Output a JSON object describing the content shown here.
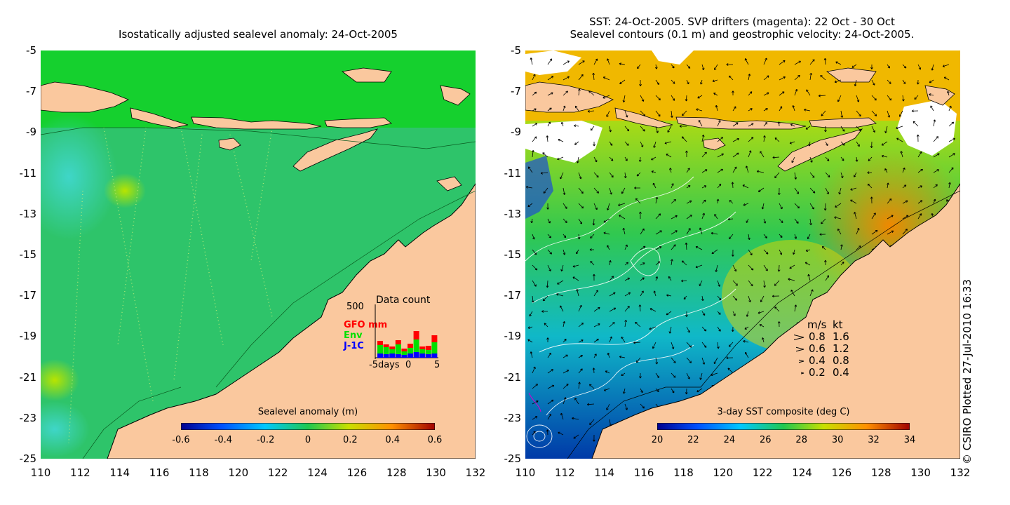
{
  "left_panel": {
    "title": "Isostatically adjusted sealevel anomaly: 24-Oct-2005",
    "y_ticks": [
      "-5",
      "-7",
      "-9",
      "-11",
      "-13",
      "-15",
      "-17",
      "-19",
      "-21",
      "-23",
      "-25"
    ],
    "x_ticks": [
      "110",
      "112",
      "114",
      "116",
      "118",
      "120",
      "122",
      "124",
      "126",
      "128",
      "130",
      "132"
    ],
    "colorbar": {
      "title": "Sealevel anomaly (m)",
      "ticks": [
        "-0.6",
        "-0.4",
        "-0.2",
        "0",
        "0.2",
        "0.4",
        "0.6"
      ]
    },
    "data_count": {
      "title": "Data count",
      "max_label": "500",
      "legend": {
        "gfo": "GFO mm",
        "env": "Env",
        "j1c": "J-1C"
      },
      "x_axis": {
        "left": "-5days",
        "mid": "0",
        "right": "5"
      },
      "colors": {
        "gfo": "#ff0000",
        "env": "#00e000",
        "j1c": "#0000ff"
      }
    }
  },
  "right_panel": {
    "title_line1": "SST: 24-Oct-2005. SVP drifters (magenta): 22 Oct - 30 Oct",
    "title_line2": "Sealevel contours (0.1 m) and geostrophic velocity: 24-Oct-2005.",
    "y_ticks": [
      "-5",
      "-7",
      "-9",
      "-11",
      "-13",
      "-15",
      "-17",
      "-19",
      "-21",
      "-23",
      "-25"
    ],
    "x_ticks": [
      "110",
      "112",
      "114",
      "116",
      "118",
      "120",
      "122",
      "124",
      "126",
      "128",
      "130",
      "132"
    ],
    "colorbar": {
      "title": "3-day SST composite (deg C)",
      "ticks": [
        "20",
        "22",
        "24",
        "26",
        "28",
        "30",
        "32",
        "34"
      ]
    },
    "velocity_legend": {
      "header_ms": "m/s",
      "header_kt": "kt",
      "rows": [
        {
          "ms": "0.8",
          "kt": "1.6"
        },
        {
          "ms": "0.6",
          "kt": "1.2"
        },
        {
          "ms": "0.4",
          "kt": "0.8"
        },
        {
          "ms": "0.2",
          "kt": "0.4"
        }
      ]
    }
  },
  "credit": "© CSIRO Plotted 27-Jul-2010 16:33",
  "colors": {
    "land": "#FAC89E",
    "ocean_green": "#22c84a",
    "sst_yellow": "#e8d000",
    "sst_orange": "#f0a000"
  }
}
